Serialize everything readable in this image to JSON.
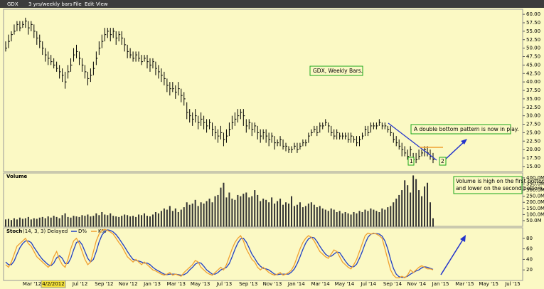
{
  "toolbar": {
    "symbol": "GDX",
    "period": "3 yrs/weekly bars",
    "menus": [
      "File",
      "Edit",
      "View"
    ]
  },
  "annotations": {
    "title_box": "GDX, Weekly Bars.",
    "pattern": "A double bottom pattern is now in play.",
    "bottom1": "1",
    "bottom2": "2",
    "volume_note": [
      "Volume is high on the first bottom,",
      "and lower on the second bottom."
    ]
  },
  "chart_data": [
    {
      "type": "hlc",
      "color": "#000000",
      "high": [
        52,
        54,
        55,
        57,
        58,
        58,
        58,
        59,
        58,
        58,
        57,
        55,
        54,
        52,
        50,
        49,
        48,
        47,
        46,
        45,
        44,
        43,
        45,
        47,
        50,
        51,
        49,
        47,
        45,
        43,
        44,
        46,
        49,
        52,
        54,
        56,
        56,
        56,
        56,
        55,
        55,
        55,
        53,
        51,
        50,
        49,
        49,
        49,
        48,
        48,
        48,
        47,
        47,
        46,
        45,
        44,
        43,
        41,
        40,
        40,
        39,
        40,
        38,
        37,
        34,
        32,
        31,
        32,
        30,
        31,
        30,
        29,
        29,
        28,
        27,
        26,
        27,
        25,
        26,
        28,
        30,
        31,
        32,
        32,
        32,
        29,
        29,
        28,
        28,
        27,
        26,
        26,
        26,
        25,
        25,
        24,
        23,
        24,
        23,
        22,
        21,
        21,
        22,
        22,
        22,
        23,
        23,
        25,
        26,
        27,
        27,
        28,
        28,
        29,
        28,
        27,
        26,
        26,
        25,
        25,
        25,
        25,
        25,
        24,
        24,
        24,
        25,
        27,
        27,
        28,
        28,
        28,
        29,
        28,
        28,
        27,
        27,
        25,
        24,
        23,
        22,
        21,
        20,
        21,
        19,
        19,
        20,
        20,
        21,
        21,
        20,
        19
      ],
      "low": [
        49,
        50,
        52,
        54,
        55,
        55,
        56,
        56,
        54,
        55,
        53,
        51,
        50,
        48,
        46,
        45,
        45,
        44,
        43,
        41,
        40,
        38,
        41,
        43,
        46,
        47,
        45,
        43,
        41,
        39,
        40,
        42,
        45,
        48,
        50,
        52,
        53,
        52,
        53,
        51,
        52,
        51,
        49,
        47,
        47,
        46,
        46,
        46,
        45,
        46,
        44,
        43,
        44,
        42,
        41,
        40,
        39,
        37,
        36,
        37,
        35,
        36,
        34,
        33,
        29,
        28,
        27,
        28,
        26,
        27,
        26,
        25,
        26,
        24,
        23,
        22,
        23,
        21,
        22,
        24,
        26,
        27,
        28,
        29,
        27,
        25,
        26,
        24,
        25,
        23,
        22,
        23,
        22,
        21,
        22,
        20,
        21,
        21,
        20,
        19.5,
        19,
        19,
        20,
        19,
        20,
        21,
        21,
        22,
        24,
        25,
        24,
        25,
        26,
        27,
        25,
        24,
        23,
        23,
        23,
        23,
        23,
        22,
        22,
        22,
        21,
        21,
        23,
        24,
        24,
        25,
        26,
        26,
        27,
        26,
        26,
        25,
        24,
        22,
        21,
        20,
        18,
        18,
        17,
        18,
        16,
        16,
        17,
        18,
        18,
        18,
        17,
        16
      ],
      "close": [
        50,
        52,
        54,
        55,
        57,
        56,
        57,
        58,
        56,
        57,
        55,
        53,
        52,
        50,
        48,
        47,
        46,
        45,
        44,
        43,
        42,
        40,
        43,
        45,
        48,
        49,
        47,
        45,
        43,
        41,
        42,
        44,
        47,
        50,
        52,
        54,
        55,
        54,
        55,
        53,
        54,
        53,
        51,
        49,
        48,
        47,
        48,
        47,
        46,
        47,
        46,
        45,
        46,
        44,
        43,
        42,
        41,
        39,
        38,
        38,
        37,
        38,
        36,
        35,
        31,
        30,
        29,
        30,
        28,
        29,
        28,
        27,
        28,
        26,
        25,
        24,
        25,
        23,
        24,
        26,
        28,
        29,
        30,
        31,
        30,
        27,
        28,
        26,
        27,
        25,
        24,
        25,
        24,
        23,
        24,
        22,
        22,
        23,
        21,
        21,
        20,
        20,
        21,
        20,
        21,
        22,
        22,
        24,
        25,
        26,
        25,
        27,
        27,
        28,
        27,
        25,
        24,
        25,
        24,
        24,
        24,
        23,
        24,
        23,
        22,
        23,
        24,
        26,
        25,
        27,
        27,
        27,
        28,
        27,
        27,
        26,
        25,
        23,
        22,
        21,
        20,
        19,
        18,
        20,
        17,
        17,
        18,
        19,
        20,
        19,
        18,
        17
      ],
      "ylim": [
        13.5,
        61.5
      ],
      "yticks": [
        {
          "value": 15,
          "label": "15.00"
        },
        {
          "value": 17.5,
          "label": "17.50"
        },
        {
          "value": 20,
          "label": "20.00"
        },
        {
          "value": 22.5,
          "label": "22.50"
        },
        {
          "value": 25,
          "label": "25.00"
        },
        {
          "value": 27.5,
          "label": "27.50"
        },
        {
          "value": 30,
          "label": "30.00"
        },
        {
          "value": 32.5,
          "label": "32.50"
        },
        {
          "value": 35,
          "label": "35.00"
        },
        {
          "value": 37.5,
          "label": "37.50"
        },
        {
          "value": 40,
          "label": "40.00"
        },
        {
          "value": 42.5,
          "label": "42.50"
        },
        {
          "value": 45,
          "label": "45.00"
        },
        {
          "value": 47.5,
          "label": "47.50"
        },
        {
          "value": 50,
          "label": "50.00"
        },
        {
          "value": 52.5,
          "label": "52.50"
        },
        {
          "value": 55,
          "label": "55.00"
        },
        {
          "value": 57.5,
          "label": "57.50"
        },
        {
          "value": 60,
          "label": "60.00"
        }
      ]
    },
    {
      "type": "bar",
      "title": "Volume",
      "color": "#333333",
      "values": [
        60,
        65,
        55,
        70,
        60,
        75,
        65,
        70,
        80,
        60,
        70,
        65,
        75,
        80,
        70,
        85,
        75,
        90,
        80,
        70,
        95,
        110,
        80,
        75,
        90,
        85,
        80,
        95,
        90,
        100,
        85,
        90,
        110,
        95,
        120,
        100,
        95,
        110,
        90,
        85,
        80,
        90,
        100,
        95,
        85,
        90,
        80,
        100,
        95,
        110,
        90,
        85,
        100,
        120,
        110,
        130,
        150,
        140,
        170,
        130,
        150,
        120,
        140,
        160,
        200,
        180,
        190,
        220,
        170,
        200,
        190,
        210,
        230,
        200,
        250,
        260,
        320,
        360,
        240,
        280,
        230,
        220,
        260,
        250,
        270,
        280,
        240,
        250,
        300,
        260,
        210,
        230,
        220,
        200,
        240,
        190,
        210,
        230,
        180,
        200,
        190,
        250,
        170,
        180,
        200,
        160,
        170,
        190,
        200,
        180,
        160,
        170,
        150,
        140,
        130,
        150,
        140,
        120,
        130,
        110,
        120,
        110,
        100,
        120,
        110,
        130,
        120,
        140,
        130,
        150,
        140,
        130,
        120,
        150,
        140,
        160,
        170,
        200,
        230,
        260,
        300,
        380,
        340,
        280,
        420,
        390,
        300,
        250,
        330,
        360,
        200,
        70
      ],
      "ylim": [
        0,
        440
      ],
      "yticks": [
        {
          "value": 50,
          "label": "50.0M"
        },
        {
          "value": 100,
          "label": "100.0M"
        },
        {
          "value": 150,
          "label": "150.0M"
        },
        {
          "value": 200,
          "label": "200.0M"
        },
        {
          "value": 250,
          "label": "250.0M"
        },
        {
          "value": 300,
          "label": "300.0M"
        },
        {
          "value": 350,
          "label": "350.0M"
        },
        {
          "value": 400,
          "label": "400.0M"
        }
      ]
    },
    {
      "type": "line",
      "title": "Stoch",
      "subtitle": "(14, 3, 3) Delayed",
      "series": [
        {
          "name": "D%",
          "color": "#1f3fc4",
          "values": [
            35,
            30,
            30,
            37,
            50,
            62,
            70,
            75,
            75,
            72,
            63,
            55,
            47,
            40,
            35,
            30,
            28,
            33,
            43,
            47,
            42,
            32,
            32,
            42,
            58,
            72,
            75,
            68,
            55,
            42,
            35,
            40,
            55,
            73,
            86,
            93,
            96,
            95,
            92,
            87,
            80,
            72,
            64,
            55,
            47,
            40,
            38,
            37,
            35,
            33,
            33,
            30,
            25,
            21,
            18,
            15,
            12,
            11,
            12,
            12,
            12,
            11,
            10,
            11,
            14,
            20,
            25,
            31,
            34,
            33,
            27,
            20,
            16,
            12,
            12,
            15,
            20,
            22,
            25,
            32,
            45,
            59,
            71,
            79,
            80,
            73,
            62,
            50,
            42,
            33,
            27,
            23,
            22,
            20,
            16,
            12,
            11,
            12,
            12,
            12,
            12,
            16,
            22,
            32,
            45,
            59,
            71,
            79,
            82,
            81,
            74,
            65,
            57,
            50,
            46,
            46,
            50,
            54,
            53,
            45,
            37,
            30,
            26,
            26,
            31,
            42,
            55,
            70,
            82,
            88,
            89,
            89,
            88,
            84,
            75,
            60,
            40,
            23,
            12,
            7,
            6,
            6,
            8,
            12,
            15,
            18,
            20,
            24,
            26,
            25,
            23,
            21
          ]
        },
        {
          "name": "K%",
          "color": "#f0a030",
          "values": [
            30,
            25,
            35,
            50,
            65,
            70,
            75,
            80,
            70,
            65,
            55,
            45,
            40,
            35,
            30,
            25,
            30,
            45,
            55,
            40,
            30,
            25,
            40,
            60,
            75,
            80,
            70,
            55,
            40,
            30,
            35,
            55,
            75,
            88,
            95,
            97,
            95,
            92,
            88,
            80,
            72,
            65,
            55,
            45,
            40,
            35,
            40,
            35,
            30,
            35,
            30,
            25,
            20,
            18,
            15,
            12,
            10,
            12,
            15,
            10,
            12,
            10,
            8,
            15,
            20,
            25,
            30,
            38,
            35,
            25,
            20,
            15,
            12,
            10,
            15,
            20,
            25,
            20,
            30,
            45,
            60,
            72,
            80,
            85,
            75,
            60,
            50,
            40,
            35,
            25,
            20,
            25,
            20,
            15,
            12,
            10,
            12,
            15,
            10,
            12,
            15,
            20,
            30,
            45,
            60,
            72,
            80,
            85,
            82,
            75,
            65,
            55,
            50,
            45,
            42,
            50,
            58,
            55,
            45,
            35,
            30,
            25,
            22,
            30,
            40,
            55,
            70,
            85,
            90,
            88,
            90,
            88,
            85,
            80,
            60,
            40,
            20,
            10,
            5,
            5,
            8,
            5,
            10,
            20,
            15,
            20,
            25,
            28,
            25,
            22,
            22,
            20
          ]
        }
      ],
      "ylim": [
        0,
        100
      ],
      "yticks": [
        20,
        40,
        60,
        80
      ],
      "xticklabels": [
        "Mar '12",
        "May '12",
        "Jul '12",
        "Sep '12",
        "Nov '12",
        "Jan '13",
        "Mar '13",
        "May '13",
        "Jul '13",
        "Sep '13",
        "Nov '13",
        "Jan '14",
        "Mar '14",
        "May '14",
        "Jul '14",
        "Sep '14",
        "Nov '14",
        "Jan '15",
        "Mar '15",
        "May '15",
        "Jul '15"
      ],
      "crosshair_label": "4/2/2012"
    }
  ]
}
